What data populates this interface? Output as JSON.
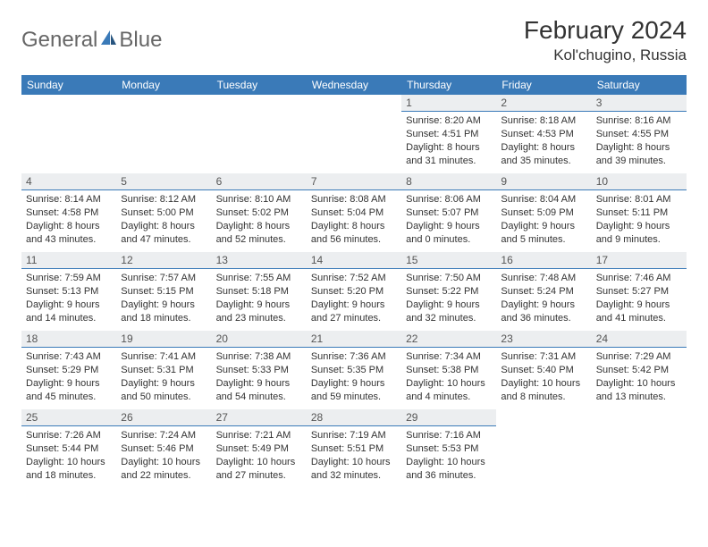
{
  "brand": {
    "part1": "General",
    "part2": "Blue"
  },
  "title": "February 2024",
  "location": "Kol'chugino, Russia",
  "colors": {
    "header_bg": "#3a7ab8",
    "header_text": "#ffffff",
    "day_num_bg": "#eceef0",
    "day_num_border": "#3a7ab8",
    "text": "#333333",
    "logo_gray": "#666666",
    "logo_blue": "#3a7ab8",
    "page_bg": "#ffffff"
  },
  "day_headers": [
    "Sunday",
    "Monday",
    "Tuesday",
    "Wednesday",
    "Thursday",
    "Friday",
    "Saturday"
  ],
  "weeks": [
    [
      null,
      null,
      null,
      null,
      {
        "n": "1",
        "sr": "Sunrise: 8:20 AM",
        "ss": "Sunset: 4:51 PM",
        "d1": "Daylight: 8 hours",
        "d2": "and 31 minutes."
      },
      {
        "n": "2",
        "sr": "Sunrise: 8:18 AM",
        "ss": "Sunset: 4:53 PM",
        "d1": "Daylight: 8 hours",
        "d2": "and 35 minutes."
      },
      {
        "n": "3",
        "sr": "Sunrise: 8:16 AM",
        "ss": "Sunset: 4:55 PM",
        "d1": "Daylight: 8 hours",
        "d2": "and 39 minutes."
      }
    ],
    [
      {
        "n": "4",
        "sr": "Sunrise: 8:14 AM",
        "ss": "Sunset: 4:58 PM",
        "d1": "Daylight: 8 hours",
        "d2": "and 43 minutes."
      },
      {
        "n": "5",
        "sr": "Sunrise: 8:12 AM",
        "ss": "Sunset: 5:00 PM",
        "d1": "Daylight: 8 hours",
        "d2": "and 47 minutes."
      },
      {
        "n": "6",
        "sr": "Sunrise: 8:10 AM",
        "ss": "Sunset: 5:02 PM",
        "d1": "Daylight: 8 hours",
        "d2": "and 52 minutes."
      },
      {
        "n": "7",
        "sr": "Sunrise: 8:08 AM",
        "ss": "Sunset: 5:04 PM",
        "d1": "Daylight: 8 hours",
        "d2": "and 56 minutes."
      },
      {
        "n": "8",
        "sr": "Sunrise: 8:06 AM",
        "ss": "Sunset: 5:07 PM",
        "d1": "Daylight: 9 hours",
        "d2": "and 0 minutes."
      },
      {
        "n": "9",
        "sr": "Sunrise: 8:04 AM",
        "ss": "Sunset: 5:09 PM",
        "d1": "Daylight: 9 hours",
        "d2": "and 5 minutes."
      },
      {
        "n": "10",
        "sr": "Sunrise: 8:01 AM",
        "ss": "Sunset: 5:11 PM",
        "d1": "Daylight: 9 hours",
        "d2": "and 9 minutes."
      }
    ],
    [
      {
        "n": "11",
        "sr": "Sunrise: 7:59 AM",
        "ss": "Sunset: 5:13 PM",
        "d1": "Daylight: 9 hours",
        "d2": "and 14 minutes."
      },
      {
        "n": "12",
        "sr": "Sunrise: 7:57 AM",
        "ss": "Sunset: 5:15 PM",
        "d1": "Daylight: 9 hours",
        "d2": "and 18 minutes."
      },
      {
        "n": "13",
        "sr": "Sunrise: 7:55 AM",
        "ss": "Sunset: 5:18 PM",
        "d1": "Daylight: 9 hours",
        "d2": "and 23 minutes."
      },
      {
        "n": "14",
        "sr": "Sunrise: 7:52 AM",
        "ss": "Sunset: 5:20 PM",
        "d1": "Daylight: 9 hours",
        "d2": "and 27 minutes."
      },
      {
        "n": "15",
        "sr": "Sunrise: 7:50 AM",
        "ss": "Sunset: 5:22 PM",
        "d1": "Daylight: 9 hours",
        "d2": "and 32 minutes."
      },
      {
        "n": "16",
        "sr": "Sunrise: 7:48 AM",
        "ss": "Sunset: 5:24 PM",
        "d1": "Daylight: 9 hours",
        "d2": "and 36 minutes."
      },
      {
        "n": "17",
        "sr": "Sunrise: 7:46 AM",
        "ss": "Sunset: 5:27 PM",
        "d1": "Daylight: 9 hours",
        "d2": "and 41 minutes."
      }
    ],
    [
      {
        "n": "18",
        "sr": "Sunrise: 7:43 AM",
        "ss": "Sunset: 5:29 PM",
        "d1": "Daylight: 9 hours",
        "d2": "and 45 minutes."
      },
      {
        "n": "19",
        "sr": "Sunrise: 7:41 AM",
        "ss": "Sunset: 5:31 PM",
        "d1": "Daylight: 9 hours",
        "d2": "and 50 minutes."
      },
      {
        "n": "20",
        "sr": "Sunrise: 7:38 AM",
        "ss": "Sunset: 5:33 PM",
        "d1": "Daylight: 9 hours",
        "d2": "and 54 minutes."
      },
      {
        "n": "21",
        "sr": "Sunrise: 7:36 AM",
        "ss": "Sunset: 5:35 PM",
        "d1": "Daylight: 9 hours",
        "d2": "and 59 minutes."
      },
      {
        "n": "22",
        "sr": "Sunrise: 7:34 AM",
        "ss": "Sunset: 5:38 PM",
        "d1": "Daylight: 10 hours",
        "d2": "and 4 minutes."
      },
      {
        "n": "23",
        "sr": "Sunrise: 7:31 AM",
        "ss": "Sunset: 5:40 PM",
        "d1": "Daylight: 10 hours",
        "d2": "and 8 minutes."
      },
      {
        "n": "24",
        "sr": "Sunrise: 7:29 AM",
        "ss": "Sunset: 5:42 PM",
        "d1": "Daylight: 10 hours",
        "d2": "and 13 minutes."
      }
    ],
    [
      {
        "n": "25",
        "sr": "Sunrise: 7:26 AM",
        "ss": "Sunset: 5:44 PM",
        "d1": "Daylight: 10 hours",
        "d2": "and 18 minutes."
      },
      {
        "n": "26",
        "sr": "Sunrise: 7:24 AM",
        "ss": "Sunset: 5:46 PM",
        "d1": "Daylight: 10 hours",
        "d2": "and 22 minutes."
      },
      {
        "n": "27",
        "sr": "Sunrise: 7:21 AM",
        "ss": "Sunset: 5:49 PM",
        "d1": "Daylight: 10 hours",
        "d2": "and 27 minutes."
      },
      {
        "n": "28",
        "sr": "Sunrise: 7:19 AM",
        "ss": "Sunset: 5:51 PM",
        "d1": "Daylight: 10 hours",
        "d2": "and 32 minutes."
      },
      {
        "n": "29",
        "sr": "Sunrise: 7:16 AM",
        "ss": "Sunset: 5:53 PM",
        "d1": "Daylight: 10 hours",
        "d2": "and 36 minutes."
      },
      null,
      null
    ]
  ]
}
